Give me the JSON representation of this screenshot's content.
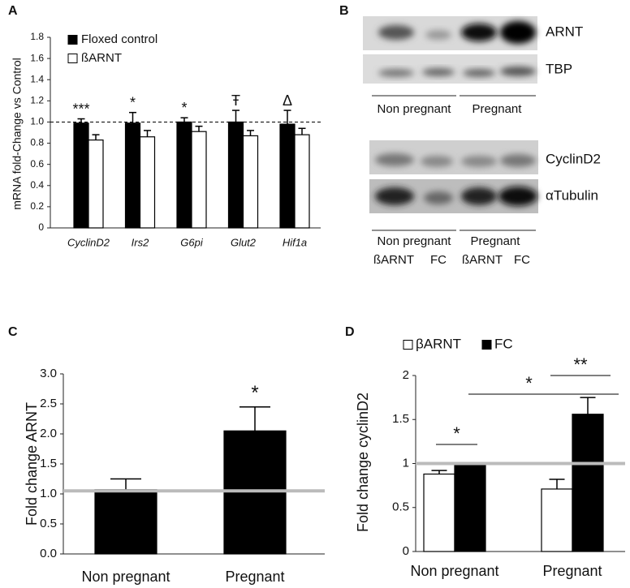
{
  "chart_data": [
    {
      "type": "bar",
      "panel_label": "A",
      "y_label": "mRNA fold-Change vs Control",
      "categories": [
        "CyclinD2",
        "Irs2",
        "G6pi",
        "Glut2",
        "Hif1a"
      ],
      "series": [
        {
          "name": "Floxed control",
          "color": "#000000",
          "values": [
            0.99,
            0.99,
            1.0,
            1.0,
            0.98
          ],
          "errors": [
            0.04,
            0.1,
            0.04,
            0.11,
            0.13
          ]
        },
        {
          "name": "ßARNT",
          "color": "#ffffff",
          "values": [
            0.83,
            0.86,
            0.91,
            0.87,
            0.88
          ],
          "errors": [
            0.05,
            0.06,
            0.05,
            0.05,
            0.06
          ]
        }
      ],
      "annotations": [
        "***",
        "*",
        "*",
        "Ŧ",
        "Δ"
      ],
      "ylim": [
        0,
        1.8
      ],
      "yticks": [
        0,
        0.2,
        0.4,
        0.6,
        0.8,
        {
          "value": 1,
          "label": "1.0"
        },
        1.2,
        1.4,
        1.6,
        1.8
      ],
      "reference_line": 1,
      "reference_line_color": "#000000",
      "reference_line_dashed": true,
      "italic_categories": true
    },
    {
      "type": "bar",
      "panel_label": "C",
      "y_label": "Fold change ARNT",
      "categories": [
        "Non pregnant",
        "Pregnant"
      ],
      "values": [
        1.07,
        2.05
      ],
      "errors": [
        0.18,
        0.4
      ],
      "color": "#000000",
      "annotations": [
        null,
        "*"
      ],
      "ylim": [
        0,
        3
      ],
      "yticks": [
        {
          "value": 0,
          "label": "0.0"
        },
        0.5,
        {
          "value": 1,
          "label": "1.0"
        },
        1.5,
        {
          "value": 2,
          "label": "2.0"
        },
        2.5,
        {
          "value": 3,
          "label": "3.0"
        }
      ],
      "reference_line": 1.05,
      "reference_line_color": "#bbbbbb",
      "reference_line_dashed": false
    },
    {
      "type": "bar",
      "panel_label": "D",
      "y_label": "Fold change cyclinD2",
      "categories": [
        "Non pregnant",
        "Pregnant"
      ],
      "series": [
        {
          "name": "βARNT",
          "color": "#ffffff",
          "values": [
            0.88,
            0.71
          ],
          "errors": [
            0.04,
            0.11
          ]
        },
        {
          "name": "FC",
          "color": "#000000",
          "values": [
            0.99,
            1.56
          ],
          "errors": [
            0.02,
            0.19
          ]
        }
      ],
      "annotations": [
        "*",
        "**",
        "*"
      ],
      "ylim": [
        0,
        2
      ],
      "yticks": [
        0,
        0.5,
        1,
        1.5,
        2
      ],
      "reference_line": 1,
      "reference_line_color": "#bbbbbb",
      "reference_line_dashed": false
    }
  ],
  "blot": {
    "panel_label": "B",
    "band_labels": [
      "ARNT",
      "TBP",
      "CyclinD2",
      "αTubulin"
    ],
    "top_groups": [
      "Non pregnant",
      "Pregnant"
    ],
    "bottom_groups": [
      "Non pregnant",
      "Pregnant"
    ],
    "bottom_lanes": [
      "ßARNT",
      "FC",
      "ßARNT",
      "FC"
    ]
  }
}
